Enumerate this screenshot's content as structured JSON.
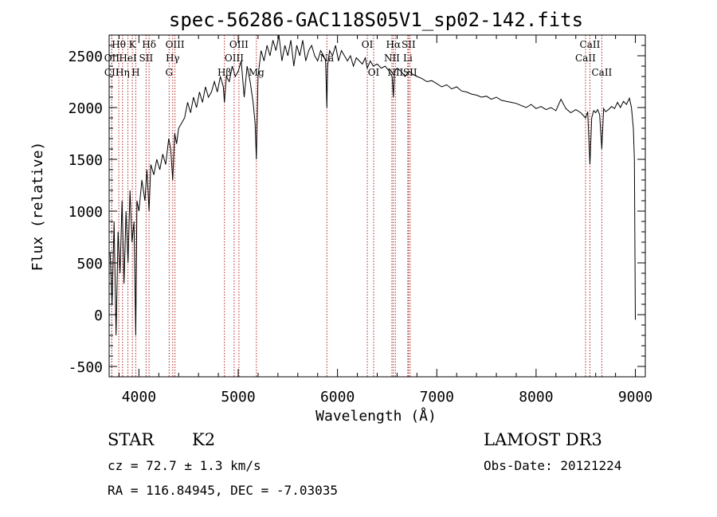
{
  "chart_data": {
    "type": "line",
    "title": "spec-56286-GAC118S05V1_sp02-142.fits",
    "xlabel": "Wavelength (Å)",
    "ylabel": "Flux (relative)",
    "xlim": [
      3700,
      9100
    ],
    "ylim": [
      -600,
      2700
    ],
    "xticks": [
      4000,
      5000,
      6000,
      7000,
      8000,
      9000
    ],
    "yticks": [
      -500,
      0,
      500,
      1000,
      1500,
      2000,
      2500
    ],
    "xminor_step": 200,
    "yminor_step": 100,
    "series": [
      {
        "name": "flux",
        "x": [
          3710,
          3730,
          3750,
          3770,
          3790,
          3810,
          3830,
          3850,
          3870,
          3890,
          3910,
          3930,
          3950,
          3968,
          3980,
          4000,
          4030,
          4060,
          4080,
          4102,
          4120,
          4150,
          4180,
          4210,
          4240,
          4270,
          4300,
          4320,
          4340,
          4360,
          4380,
          4400,
          4430,
          4460,
          4490,
          4520,
          4550,
          4580,
          4610,
          4640,
          4670,
          4700,
          4730,
          4760,
          4790,
          4820,
          4850,
          4861,
          4880,
          4910,
          4940,
          4970,
          5000,
          5030,
          5060,
          5090,
          5120,
          5150,
          5170,
          5183,
          5200,
          5230,
          5260,
          5290,
          5320,
          5350,
          5380,
          5410,
          5440,
          5470,
          5500,
          5530,
          5560,
          5590,
          5620,
          5650,
          5680,
          5710,
          5740,
          5770,
          5800,
          5830,
          5860,
          5880,
          5893,
          5900,
          5920,
          5950,
          5980,
          6010,
          6040,
          6070,
          6100,
          6130,
          6160,
          6190,
          6220,
          6250,
          6280,
          6300,
          6330,
          6360,
          6400,
          6440,
          6480,
          6520,
          6550,
          6563,
          6575,
          6600,
          6640,
          6680,
          6720,
          6760,
          6800,
          6850,
          6900,
          6950,
          7000,
          7050,
          7100,
          7150,
          7200,
          7250,
          7300,
          7350,
          7400,
          7450,
          7500,
          7550,
          7600,
          7650,
          7700,
          7750,
          7800,
          7850,
          7900,
          7950,
          8000,
          8050,
          8100,
          8150,
          8200,
          8250,
          8300,
          8350,
          8400,
          8450,
          8498,
          8520,
          8542,
          8560,
          8580,
          8600,
          8620,
          8640,
          8662,
          8680,
          8700,
          8730,
          8760,
          8790,
          8820,
          8850,
          8880,
          8910,
          8940,
          8960,
          8980,
          8990,
          9000
        ],
        "values": [
          600,
          100,
          900,
          -200,
          800,
          400,
          1100,
          300,
          1000,
          500,
          1200,
          700,
          900,
          -200,
          1100,
          1000,
          1300,
          1100,
          1400,
          1000,
          1450,
          1350,
          1500,
          1400,
          1550,
          1450,
          1700,
          1600,
          1300,
          1750,
          1650,
          1800,
          1850,
          1900,
          2050,
          1950,
          2100,
          2000,
          2150,
          2050,
          2200,
          2100,
          2150,
          2250,
          2150,
          2300,
          2200,
          2050,
          2300,
          2250,
          2400,
          2300,
          2350,
          2450,
          2100,
          2400,
          2250,
          2050,
          1850,
          1500,
          2300,
          2550,
          2450,
          2600,
          2500,
          2650,
          2550,
          2700,
          2450,
          2600,
          2500,
          2650,
          2400,
          2600,
          2500,
          2650,
          2450,
          2550,
          2600,
          2500,
          2450,
          2550,
          2500,
          2450,
          2000,
          2400,
          2550,
          2500,
          2600,
          2450,
          2550,
          2500,
          2450,
          2500,
          2400,
          2480,
          2450,
          2420,
          2480,
          2380,
          2450,
          2400,
          2420,
          2380,
          2400,
          2350,
          2300,
          2100,
          2350,
          2380,
          2350,
          2300,
          2350,
          2320,
          2300,
          2280,
          2250,
          2260,
          2230,
          2200,
          2220,
          2180,
          2200,
          2160,
          2150,
          2130,
          2120,
          2100,
          2110,
          2080,
          2100,
          2070,
          2060,
          2050,
          2040,
          2020,
          2000,
          2030,
          1990,
          2010,
          1980,
          2000,
          1970,
          2080,
          1990,
          1950,
          1980,
          1950,
          1900,
          1960,
          1450,
          1900,
          1970,
          1950,
          1980,
          1930,
          1600,
          1990,
          1960,
          1980,
          2010,
          1990,
          2050,
          2000,
          2060,
          2030,
          2090,
          2000,
          1800,
          1500,
          -50
        ]
      }
    ],
    "line_markers": [
      {
        "label": "Hθ",
        "wl": 3797,
        "row": 0
      },
      {
        "label": "OII",
        "wl": 3727,
        "row": 1
      },
      {
        "label": "HeI",
        "wl": 3889,
        "row": 1
      },
      {
        "label": "K",
        "wl": 3934,
        "row": 0
      },
      {
        "label": "SII",
        "wl": 4072,
        "row": 1
      },
      {
        "label": "Hδ",
        "wl": 4102,
        "row": 0
      },
      {
        "label": "OIII",
        "wl": 4363,
        "row": 0
      },
      {
        "label": "Hγ",
        "wl": 4340,
        "row": 1
      },
      {
        "label": "CII",
        "wl": 3726,
        "row": 2
      },
      {
        "label": "Hη",
        "wl": 3835,
        "row": 2
      },
      {
        "label": "H",
        "wl": 3968,
        "row": 2
      },
      {
        "label": "G",
        "wl": 4304,
        "row": 2
      },
      {
        "label": "Hβ",
        "wl": 4861,
        "row": 2
      },
      {
        "label": "OIII",
        "wl": 5007,
        "row": 0
      },
      {
        "label": "OIII",
        "wl": 4959,
        "row": 1
      },
      {
        "label": "Mg",
        "wl": 5183,
        "row": 2
      },
      {
        "label": "Na",
        "wl": 5893,
        "row": 1
      },
      {
        "label": "OI",
        "wl": 6300,
        "row": 0
      },
      {
        "label": "OI",
        "wl": 6364,
        "row": 2
      },
      {
        "label": "Hα",
        "wl": 6563,
        "row": 0
      },
      {
        "label": "NII",
        "wl": 6548,
        "row": 1
      },
      {
        "label": "NII",
        "wl": 6583,
        "row": 2
      },
      {
        "label": "SII",
        "wl": 6716,
        "row": 0
      },
      {
        "label": "Li",
        "wl": 6708,
        "row": 1
      },
      {
        "label": "SII",
        "wl": 6731,
        "row": 2
      },
      {
        "label": "CaII",
        "wl": 8542,
        "row": 0
      },
      {
        "label": "CaII",
        "wl": 8498,
        "row": 1
      },
      {
        "label": "CaII",
        "wl": 8662,
        "row": 2
      }
    ]
  },
  "info": {
    "object_class": "STAR",
    "subclass": "K2",
    "survey": "LAMOST DR3",
    "cz": "cz = 72.7 ± 1.3 km/s",
    "obs_date": "Obs-Date: 20121224",
    "coords": "RA = 116.84945, DEC =  -7.03035"
  },
  "colors": {
    "line_marker": "#b22222",
    "spectrum": "#000000"
  }
}
